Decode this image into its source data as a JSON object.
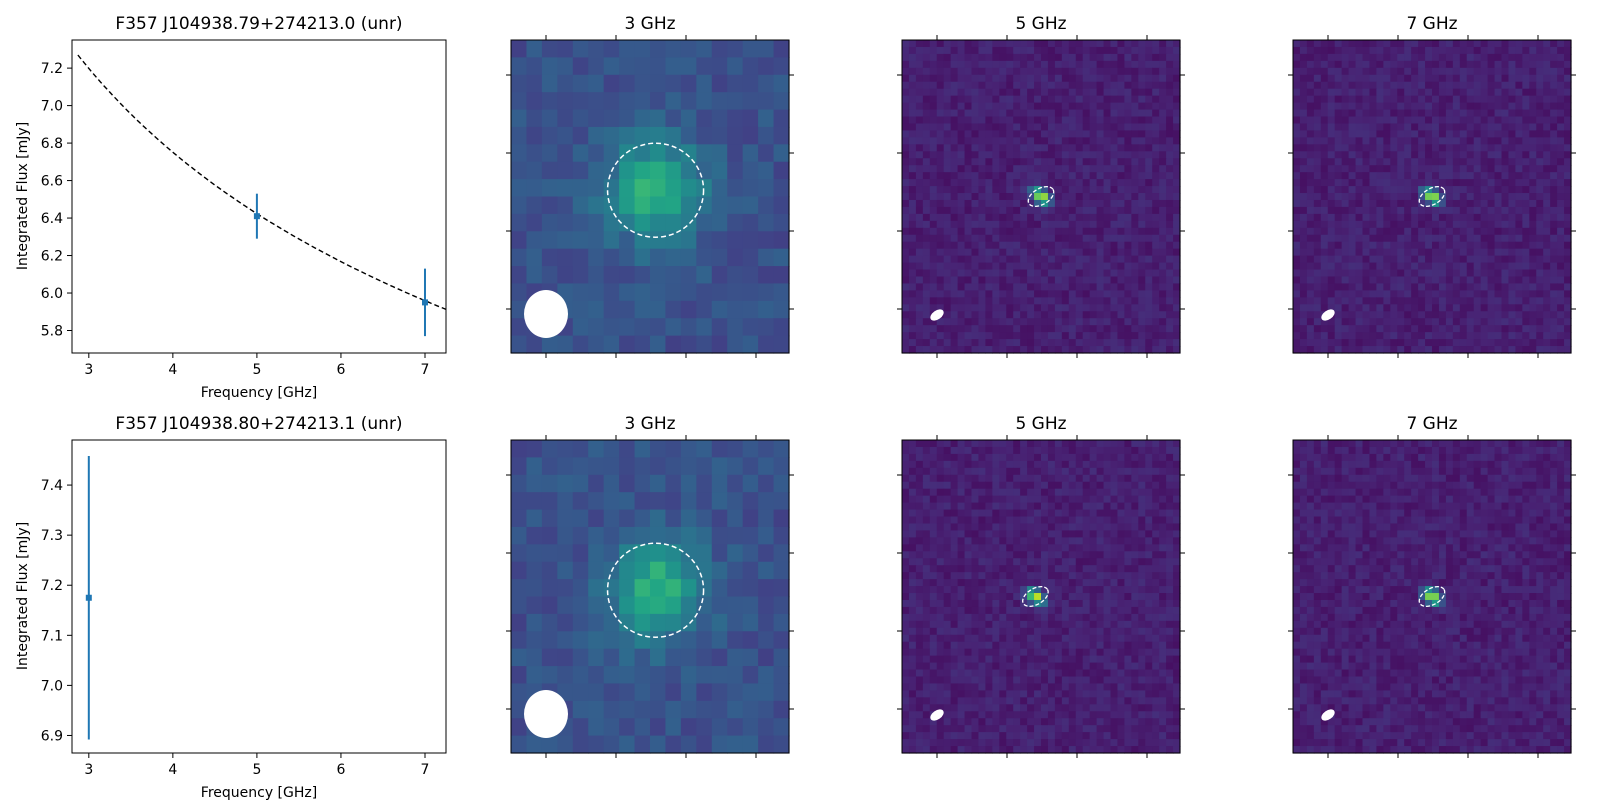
{
  "chart_data": [
    {
      "type": "scatter",
      "title": "F357 J104938.79+274213.0 (unr)",
      "xlabel": "Frequency [GHz]",
      "ylabel": "Integrated Flux [mJy]",
      "xlim": [
        2.8,
        7.25
      ],
      "ylim": [
        5.68,
        7.35
      ],
      "xticks": [
        "3",
        "4",
        "5",
        "6",
        "7"
      ],
      "yticks": [
        "5.8",
        "6.0",
        "6.2",
        "6.4",
        "6.6",
        "6.8",
        "7.0",
        "7.2"
      ],
      "points": [
        {
          "x": 5,
          "y": 6.41,
          "err": 0.12
        },
        {
          "x": 7,
          "y": 5.95,
          "err": 0.18
        }
      ],
      "fit": {
        "style": "dashed",
        "color": "#000000",
        "x_start": 2.87,
        "y_start": 7.27,
        "spectral_index": -0.223
      },
      "marker_color": "#1f77b4"
    },
    {
      "type": "heatmap",
      "title": "3 GHz",
      "grid": [
        18,
        18
      ],
      "source_center": [
        0.52,
        0.48
      ],
      "colormap": "viridis",
      "beam": "circle",
      "contour": "dashed-white-ellipse"
    },
    {
      "type": "heatmap",
      "title": "5 GHz",
      "grid": [
        40,
        45
      ],
      "source_center": [
        0.5,
        0.5
      ],
      "colormap": "viridis",
      "beam": "small-ellipse",
      "contour": "dashed-white-ellipse"
    },
    {
      "type": "heatmap",
      "title": "7 GHz",
      "grid": [
        40,
        45
      ],
      "source_center": [
        0.5,
        0.5
      ],
      "colormap": "viridis",
      "beam": "small-ellipse",
      "contour": "dashed-white-ellipse"
    },
    {
      "type": "scatter",
      "title": "F357 J104938.80+274213.1 (unr)",
      "xlabel": "Frequency [GHz]",
      "ylabel": "Integrated Flux [mJy]",
      "xlim": [
        2.8,
        7.25
      ],
      "ylim": [
        6.865,
        7.49
      ],
      "xticks": [
        "3",
        "4",
        "5",
        "6",
        "7"
      ],
      "yticks": [
        "6.9",
        "7.0",
        "7.1",
        "7.2",
        "7.3",
        "7.4"
      ],
      "points": [
        {
          "x": 3,
          "y": 7.175,
          "err": 0.283
        }
      ],
      "marker_color": "#1f77b4"
    },
    {
      "type": "heatmap",
      "title": "3 GHz",
      "grid": [
        18,
        18
      ],
      "source_center": [
        0.52,
        0.48
      ],
      "colormap": "viridis",
      "beam": "circle",
      "contour": "dashed-white-ellipse"
    },
    {
      "type": "heatmap",
      "title": "5 GHz",
      "grid": [
        40,
        45
      ],
      "source_center": [
        0.48,
        0.5
      ],
      "colormap": "viridis",
      "beam": "small-ellipse",
      "contour": "dashed-white-ellipse"
    },
    {
      "type": "heatmap",
      "title": "7 GHz",
      "grid": [
        40,
        45
      ],
      "source_center": [
        0.5,
        0.5
      ],
      "colormap": "viridis",
      "beam": "small-ellipse",
      "contour": "dashed-white-ellipse"
    }
  ]
}
